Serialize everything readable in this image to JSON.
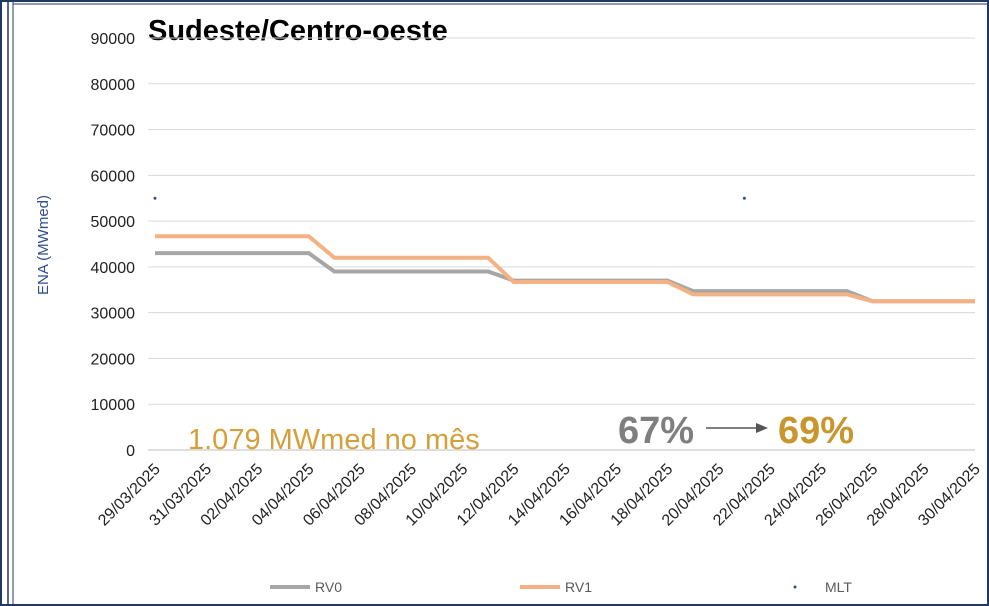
{
  "chart_data": {
    "type": "line",
    "title": "Sudeste/Centro-oeste",
    "y_label": "ENA (MWmed)",
    "categories": [
      "29/03/2025",
      null,
      "31/03/2025",
      null,
      "02/04/2025",
      null,
      "04/04/2025",
      null,
      "06/04/2025",
      null,
      "08/04/2025",
      null,
      "10/04/2025",
      null,
      "12/04/2025",
      null,
      "14/04/2025",
      null,
      "16/04/2025",
      null,
      "18/04/2025",
      null,
      "20/04/2025",
      null,
      "22/04/2025",
      null,
      "24/04/2025",
      null,
      "26/04/2025",
      null,
      "28/04/2025",
      null,
      "30/04/2025"
    ],
    "series": [
      {
        "name": "RV0",
        "color": "#a6a6a6",
        "values": [
          43000,
          43000,
          43000,
          43000,
          43000,
          43000,
          43000,
          39000,
          39000,
          39000,
          39000,
          39000,
          39000,
          39000,
          37000,
          37000,
          37000,
          37000,
          37000,
          37000,
          37000,
          34700,
          34700,
          34700,
          34700,
          34700,
          34700,
          34700,
          32500,
          32500,
          32500,
          32500,
          32500
        ]
      },
      {
        "name": "RV1",
        "color": "#f4b183",
        "values": [
          46700,
          46700,
          46700,
          46700,
          46700,
          46700,
          46700,
          42000,
          42000,
          42000,
          42000,
          42000,
          42000,
          42000,
          36700,
          36700,
          36700,
          36700,
          36700,
          36700,
          36700,
          34000,
          34000,
          34000,
          34000,
          34000,
          34000,
          34000,
          32500,
          32500,
          32500,
          32500,
          32500
        ]
      },
      {
        "name": "MLT",
        "color": "#2f4f8f",
        "values": [
          55000,
          null,
          null,
          null,
          null,
          null,
          null,
          null,
          null,
          null,
          null,
          null,
          null,
          null,
          null,
          null,
          null,
          null,
          null,
          null,
          null,
          null,
          null,
          55000,
          null,
          null,
          null,
          null,
          null,
          null,
          null,
          null,
          null
        ]
      }
    ],
    "annotations": [
      "1.079 MWmed no mês",
      "67%",
      "69%"
    ],
    "ylim": [
      0,
      90000
    ],
    "yticks": [
      0,
      10000,
      20000,
      30000,
      40000,
      50000,
      60000,
      70000,
      80000,
      90000
    ],
    "grid": true
  }
}
